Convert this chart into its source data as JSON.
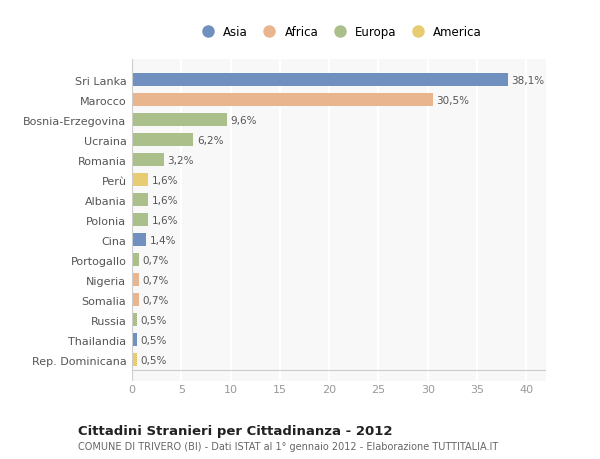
{
  "categories": [
    "Sri Lanka",
    "Marocco",
    "Bosnia-Erzegovina",
    "Ucraina",
    "Romania",
    "Perù",
    "Albania",
    "Polonia",
    "Cina",
    "Portogallo",
    "Nigeria",
    "Somalia",
    "Russia",
    "Thailandia",
    "Rep. Dominicana"
  ],
  "values": [
    38.1,
    30.5,
    9.6,
    6.2,
    3.2,
    1.6,
    1.6,
    1.6,
    1.4,
    0.7,
    0.7,
    0.7,
    0.5,
    0.5,
    0.5
  ],
  "labels": [
    "38,1%",
    "30,5%",
    "9,6%",
    "6,2%",
    "3,2%",
    "1,6%",
    "1,6%",
    "1,6%",
    "1,4%",
    "0,7%",
    "0,7%",
    "0,7%",
    "0,5%",
    "0,5%",
    "0,5%"
  ],
  "continent": [
    "Asia",
    "Africa",
    "Europa",
    "Europa",
    "Europa",
    "America",
    "Europa",
    "Europa",
    "Asia",
    "Europa",
    "Africa",
    "Africa",
    "Europa",
    "Asia",
    "America"
  ],
  "colors": {
    "Asia": "#7090c0",
    "Africa": "#e8b58e",
    "Europa": "#aabf8a",
    "America": "#e8cc72"
  },
  "legend_order": [
    "Asia",
    "Africa",
    "Europa",
    "America"
  ],
  "title": "Cittadini Stranieri per Cittadinanza - 2012",
  "subtitle": "COMUNE DI TRIVERO (BI) - Dati ISTAT al 1° gennaio 2012 - Elaborazione TUTTITALIA.IT",
  "xlim": [
    0,
    42
  ],
  "xticks": [
    0,
    5,
    10,
    15,
    20,
    25,
    30,
    35,
    40
  ],
  "bg_color": "#ffffff",
  "plot_bg_color": "#f8f8f8",
  "grid_color": "#ffffff",
  "bar_height": 0.65
}
